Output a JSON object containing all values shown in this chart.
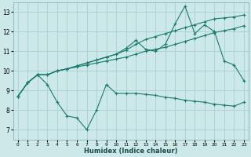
{
  "xlabel": "Humidex (Indice chaleur)",
  "bg_color": "#cde8e8",
  "grid_color": "#aad0d0",
  "line_color": "#1a7a6e",
  "xlim": [
    -0.5,
    23.5
  ],
  "ylim": [
    6.5,
    13.5
  ],
  "xticks": [
    0,
    1,
    2,
    3,
    4,
    5,
    6,
    7,
    8,
    9,
    10,
    11,
    12,
    13,
    14,
    15,
    16,
    17,
    18,
    19,
    20,
    21,
    22,
    23
  ],
  "yticks": [
    7,
    8,
    9,
    10,
    11,
    12,
    13
  ],
  "line1_x": [
    0,
    1,
    2,
    3,
    4,
    5,
    6,
    7,
    8,
    9,
    10,
    11,
    12,
    13,
    14,
    15,
    16,
    17,
    18,
    19,
    20,
    21,
    22,
    23
  ],
  "line1_y": [
    8.7,
    9.4,
    9.8,
    9.3,
    8.4,
    7.7,
    7.6,
    7.0,
    8.0,
    9.3,
    8.85,
    8.85,
    8.85,
    8.8,
    8.75,
    8.65,
    8.6,
    8.5,
    8.45,
    8.4,
    8.3,
    8.25,
    8.2,
    8.4
  ],
  "line2_x": [
    0,
    1,
    2,
    3,
    4,
    5,
    6,
    7,
    8,
    9,
    10,
    11,
    12,
    13,
    14,
    15,
    16,
    17,
    18,
    19,
    20,
    21,
    22,
    23
  ],
  "line2_y": [
    8.7,
    9.4,
    9.8,
    9.8,
    10.0,
    10.1,
    10.2,
    10.3,
    10.4,
    10.5,
    10.6,
    10.7,
    10.85,
    11.0,
    11.1,
    11.2,
    11.35,
    11.5,
    11.65,
    11.8,
    11.95,
    12.05,
    12.15,
    12.3
  ],
  "line3_x": [
    0,
    1,
    2,
    3,
    4,
    5,
    6,
    7,
    8,
    9,
    10,
    11,
    12,
    13,
    14,
    15,
    16,
    17,
    18,
    19,
    20,
    21,
    22,
    23
  ],
  "line3_y": [
    8.7,
    9.4,
    9.8,
    9.8,
    10.0,
    10.1,
    10.25,
    10.4,
    10.55,
    10.7,
    10.85,
    11.15,
    11.55,
    11.1,
    11.0,
    11.35,
    12.4,
    13.3,
    11.9,
    12.35,
    12.0,
    10.5,
    10.3,
    9.5
  ],
  "line4_x": [
    0,
    1,
    2,
    3,
    4,
    5,
    6,
    7,
    8,
    9,
    10,
    11,
    12,
    13,
    14,
    15,
    16,
    17,
    18,
    19,
    20,
    21,
    22,
    23
  ],
  "line4_y": [
    8.7,
    9.4,
    9.8,
    9.8,
    10.0,
    10.1,
    10.25,
    10.4,
    10.55,
    10.7,
    10.85,
    11.05,
    11.35,
    11.6,
    11.75,
    11.9,
    12.05,
    12.2,
    12.35,
    12.5,
    12.65,
    12.7,
    12.75,
    12.85
  ]
}
